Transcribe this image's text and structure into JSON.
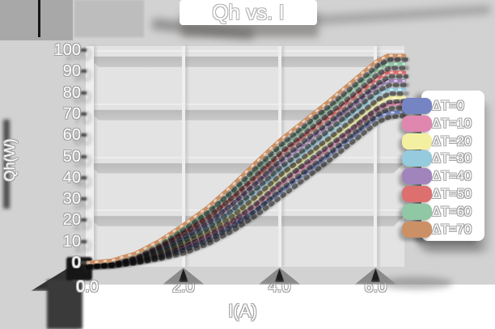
{
  "title": "Qh vs. I",
  "axes": {
    "x_label": "I(A)",
    "y_label": "Qh(W)",
    "x_ticks": [
      "0.0",
      "2.0",
      "4.0",
      "6.0"
    ],
    "y_ticks": [
      "100",
      "90",
      "80",
      "70",
      "60",
      "50",
      "40",
      "30",
      "20",
      "10",
      "0"
    ]
  },
  "legend": {
    "position": "right",
    "items": [
      {
        "label": "ΔT=0",
        "color": "#7585c4"
      },
      {
        "label": "ΔT=10",
        "color": "#e087b0"
      },
      {
        "label": "ΔT=20",
        "color": "#f4f0a1"
      },
      {
        "label": "ΔT=30",
        "color": "#96cbdd"
      },
      {
        "label": "ΔT=40",
        "color": "#a284bd"
      },
      {
        "label": "ΔT=50",
        "color": "#dd6f6f"
      },
      {
        "label": "ΔT=60",
        "color": "#90c7a5"
      },
      {
        "label": "ΔT=70",
        "color": "#cb9065"
      }
    ]
  },
  "chart_data": {
    "type": "line",
    "title": "Qh vs. I",
    "xlabel": "I(A)",
    "ylabel": "Qh(W)",
    "xlim": [
      0,
      6.6
    ],
    "ylim": [
      0,
      102
    ],
    "x_gridlines": [
      0,
      2,
      4,
      6
    ],
    "y_gridlines": [
      25,
      50,
      75,
      100
    ],
    "legend_position": "right",
    "x": [
      0,
      0.5,
      1,
      1.5,
      2,
      2.5,
      3,
      3.5,
      4,
      4.5,
      5,
      5.5,
      6,
      6.25,
      6.6
    ],
    "series": [
      {
        "name": "ΔT=0",
        "color": "#7585c4",
        "values": [
          0,
          0.4,
          1.8,
          3.8,
          6.5,
          11,
          17,
          24.5,
          33,
          41.5,
          50,
          59,
          68,
          70.5,
          71
        ]
      },
      {
        "name": "ΔT=10",
        "color": "#e087b0",
        "values": [
          0,
          0.5,
          2.0,
          4.3,
          8,
          12.5,
          19,
          27,
          36.5,
          45,
          53.5,
          62.5,
          71.5,
          74.5,
          75
        ]
      },
      {
        "name": "ΔT=20",
        "color": "#f4f0a1",
        "values": [
          0,
          0.6,
          2.3,
          5.0,
          9.5,
          14.5,
          21.5,
          30,
          40,
          48.5,
          57,
          65.5,
          74.5,
          77.5,
          78
        ]
      },
      {
        "name": "ΔT=30",
        "color": "#96cbdd",
        "values": [
          0,
          0.7,
          2.7,
          6.0,
          11,
          16.5,
          24,
          33.5,
          43.5,
          52,
          60.5,
          69.5,
          78.5,
          81.5,
          81.5
        ]
      },
      {
        "name": "ΔT=40",
        "color": "#a284bd",
        "values": [
          0,
          0.8,
          3.1,
          7.0,
          12.5,
          18.5,
          27,
          37,
          47,
          55.5,
          64.5,
          73.5,
          82.5,
          85.5,
          85.5
        ]
      },
      {
        "name": "ΔT=50",
        "color": "#dd6f6f",
        "values": [
          0,
          0.9,
          3.5,
          8.0,
          14,
          21,
          30,
          40,
          50.5,
          59.5,
          68,
          77,
          86,
          89.5,
          89.5
        ]
      },
      {
        "name": "ΔT=60",
        "color": "#90c7a5",
        "values": [
          0,
          1.0,
          4.0,
          9.3,
          16,
          23.5,
          33,
          43.5,
          54,
          63,
          72,
          81,
          90.5,
          93.5,
          93.5
        ]
      },
      {
        "name": "ΔT=70",
        "color": "#cb9065",
        "values": [
          0,
          1.1,
          4.4,
          10.3,
          17.8,
          26,
          36,
          47,
          57.5,
          66.5,
          75.5,
          85,
          94.5,
          97.5,
          97.5
        ]
      }
    ]
  }
}
